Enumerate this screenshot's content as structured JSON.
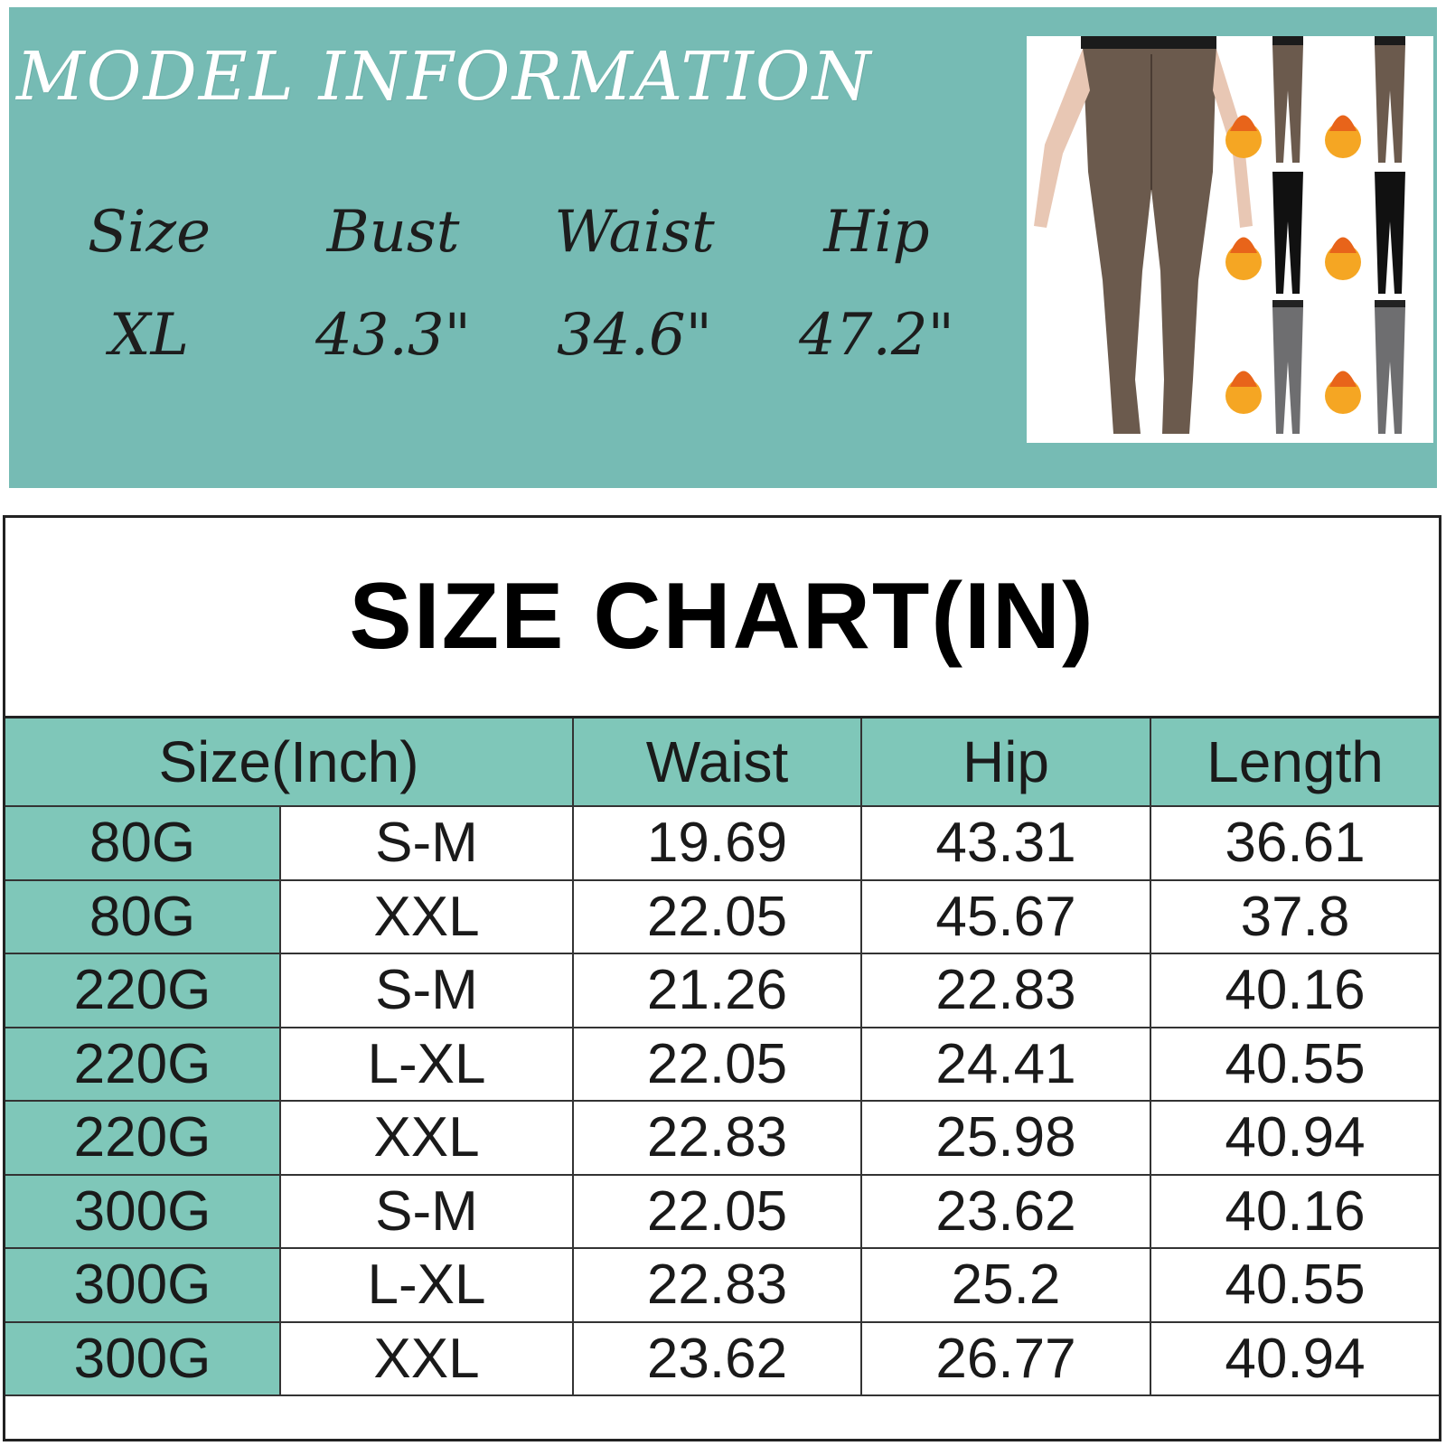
{
  "model_info": {
    "title": "MODEL INFORMATION",
    "headers": [
      "Size",
      "Bust",
      "Waist",
      "Hip"
    ],
    "values": [
      "XL",
      "43.3\"",
      "34.6\"",
      "47.2\""
    ],
    "product_photo": "tights-product-photo"
  },
  "size_chart": {
    "title": "SIZE CHART(IN)",
    "headers": [
      "Size(Inch)",
      "Waist",
      "Hip",
      "Length"
    ],
    "rows": [
      {
        "weight": "80G",
        "size": "S-M",
        "waist": "19.69",
        "hip": "43.31",
        "length": "36.61"
      },
      {
        "weight": "80G",
        "size": "XXL",
        "waist": "22.05",
        "hip": "45.67",
        "length": "37.8"
      },
      {
        "weight": "220G",
        "size": "S-M",
        "waist": "21.26",
        "hip": "22.83",
        "length": "40.16"
      },
      {
        "weight": "220G",
        "size": "L-XL",
        "waist": "22.05",
        "hip": "24.41",
        "length": "40.55"
      },
      {
        "weight": "220G",
        "size": "XXL",
        "waist": "22.83",
        "hip": "25.98",
        "length": "40.94"
      },
      {
        "weight": "300G",
        "size": "S-M",
        "waist": "22.05",
        "hip": "23.62",
        "length": "40.16"
      },
      {
        "weight": "300G",
        "size": "L-XL",
        "waist": "22.83",
        "hip": "25.2",
        "length": "40.55"
      },
      {
        "weight": "300G",
        "size": "XXL",
        "waist": "23.62",
        "hip": "26.77",
        "length": "40.94"
      }
    ]
  },
  "colors": {
    "banner_bg": "#76bbb4",
    "header_bg": "#7fc7b9",
    "title_text": "#ffffff"
  }
}
